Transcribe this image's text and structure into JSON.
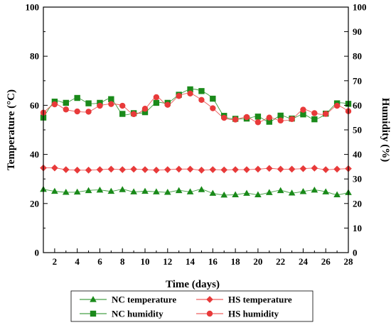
{
  "chart_data": {
    "type": "line",
    "xlabel": "Time (days)",
    "ylabel": "Temperature (°C)",
    "ylabel_right": "Humidity (%)",
    "x": [
      1,
      2,
      3,
      4,
      5,
      6,
      7,
      8,
      9,
      10,
      11,
      12,
      13,
      14,
      15,
      16,
      17,
      18,
      19,
      20,
      21,
      22,
      23,
      24,
      25,
      26,
      27,
      28
    ],
    "xlim": [
      1,
      28
    ],
    "xticks": [
      2,
      4,
      6,
      8,
      10,
      12,
      14,
      16,
      18,
      20,
      22,
      24,
      26,
      28
    ],
    "ylim": [
      0,
      100
    ],
    "yticks": [
      0,
      20,
      40,
      60,
      80,
      100
    ],
    "ylim_right": [
      0,
      100
    ],
    "yticks_right": [
      0,
      10,
      20,
      30,
      40,
      50,
      60,
      70,
      80,
      90,
      100
    ],
    "grid": false,
    "legend_placement": "bottom",
    "series": [
      {
        "name": "NC temperature",
        "axis": "left",
        "marker": "triangle",
        "color": "#1a8a1a",
        "values": [
          25.8,
          25.0,
          24.6,
          24.7,
          25.3,
          25.5,
          25.0,
          25.7,
          24.8,
          25.0,
          24.8,
          24.6,
          25.3,
          24.8,
          25.7,
          24.2,
          23.5,
          23.6,
          24.2,
          23.6,
          24.5,
          25.3,
          24.3,
          24.9,
          25.5,
          24.8,
          23.6,
          24.5
        ]
      },
      {
        "name": "NC humidity",
        "axis": "right",
        "marker": "square",
        "color": "#1a8a1a",
        "values": [
          55.0,
          61.5,
          61.0,
          63.0,
          60.8,
          61.0,
          62.5,
          56.5,
          56.8,
          57.2,
          61.0,
          61.0,
          64.3,
          66.5,
          65.8,
          62.7,
          55.7,
          54.5,
          54.6,
          55.4,
          53.3,
          55.8,
          54.6,
          56.3,
          54.3,
          56.6,
          60.8,
          60.6
        ]
      },
      {
        "name": "HS temperature",
        "axis": "left",
        "marker": "diamond",
        "color": "#e83a3a",
        "values": [
          34.5,
          34.5,
          33.8,
          33.6,
          33.6,
          33.8,
          34.0,
          33.8,
          34.0,
          33.8,
          33.6,
          33.8,
          34.0,
          34.0,
          33.6,
          33.8,
          33.7,
          33.8,
          33.8,
          34.0,
          34.3,
          34.0,
          34.0,
          34.2,
          34.4,
          33.8,
          34.0,
          34.2
        ]
      },
      {
        "name": "HS humidity",
        "axis": "right",
        "marker": "circle",
        "color": "#e83a3a",
        "values": [
          57.0,
          60.4,
          58.3,
          57.5,
          57.4,
          59.8,
          60.5,
          59.8,
          56.4,
          58.6,
          63.3,
          60.2,
          63.8,
          64.8,
          62.2,
          58.8,
          54.9,
          54.2,
          55.2,
          53.1,
          55.0,
          53.8,
          54.4,
          58.2,
          56.8,
          56.5,
          59.8,
          57.6
        ]
      }
    ]
  }
}
